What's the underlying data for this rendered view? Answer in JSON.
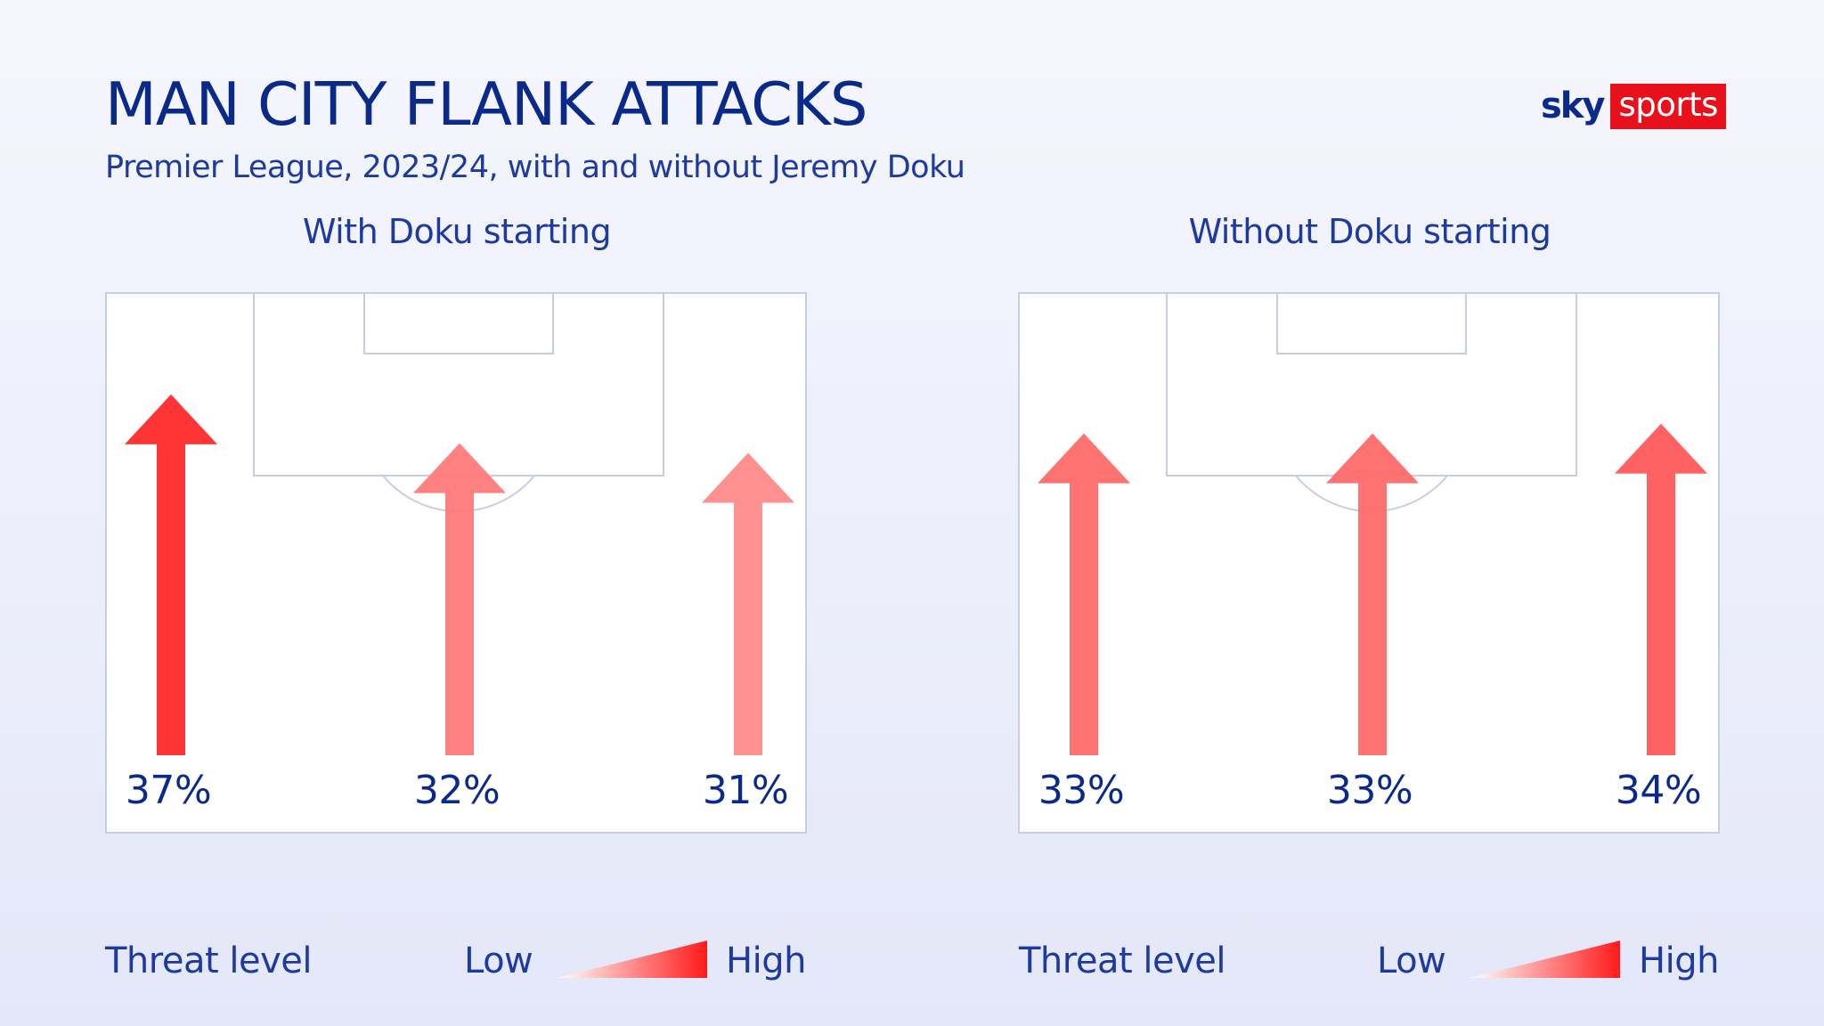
{
  "header": {
    "title": "MAN CITY FLANK ATTACKS",
    "subtitle": "Premier League, 2023/24, with and without Jeremy Doku"
  },
  "logo": {
    "sky": "sky",
    "sports": "sports"
  },
  "legend": {
    "label": "Threat level",
    "low": "Low",
    "high": "High"
  },
  "colors": {
    "high": "#ff1a1a",
    "low": "#ffffff",
    "text": "#0a2a8a",
    "pitch_lines": "#c9cde4"
  },
  "chart_data": [
    {
      "type": "bar",
      "title": "With Doku starting",
      "categories": [
        "Left",
        "Centre",
        "Right"
      ],
      "values": [
        37,
        32,
        31
      ],
      "labels": [
        "37%",
        "32%",
        "31%"
      ],
      "unit": "%"
    },
    {
      "type": "bar",
      "title": "Without Doku starting",
      "categories": [
        "Left",
        "Centre",
        "Right"
      ],
      "values": [
        33,
        33,
        34
      ],
      "labels": [
        "33%",
        "33%",
        "34%"
      ],
      "unit": "%"
    }
  ]
}
